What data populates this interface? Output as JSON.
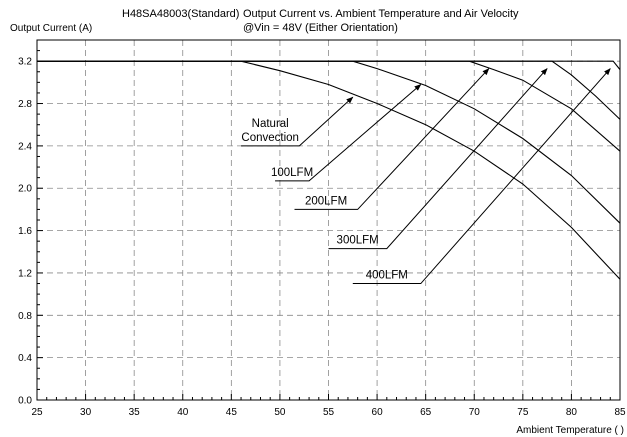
{
  "chart_data": {
    "type": "line",
    "title_line1_left": "H48SA48003(Standard)",
    "title_line1_right": "Output Current vs. Ambient Temperature and Air Velocity",
    "title_line2": "@Vin = 48V (Either Orientation)",
    "ylabel": "Output Current (A)",
    "xlabel": "Ambient Temperature (   )",
    "xlim": [
      25,
      85
    ],
    "ylim": [
      0,
      3.4
    ],
    "x_ticks": [
      25,
      30,
      35,
      40,
      45,
      50,
      55,
      60,
      65,
      70,
      75,
      80,
      85
    ],
    "y_ticks": [
      0.0,
      0.4,
      0.8,
      1.2,
      1.6,
      2.0,
      2.4,
      2.8,
      3.2
    ],
    "y_tick_labels": [
      "0.0",
      "0.4",
      "0.8",
      "1.2",
      "1.6",
      "2.0",
      "2.4",
      "2.8",
      "3.2"
    ],
    "grid": true,
    "series": [
      {
        "name": "Natural Convection",
        "x": [
          25,
          46,
          50,
          55,
          60,
          65,
          70,
          75,
          80,
          85
        ],
        "y": [
          3.2,
          3.2,
          3.11,
          2.98,
          2.8,
          2.6,
          2.35,
          2.04,
          1.63,
          1.14
        ]
      },
      {
        "name": "100LFM",
        "x": [
          25,
          57.5,
          60,
          65,
          70,
          75,
          80,
          85
        ],
        "y": [
          3.2,
          3.2,
          3.13,
          2.97,
          2.75,
          2.47,
          2.12,
          1.67
        ]
      },
      {
        "name": "200LFM",
        "x": [
          25,
          69.5,
          72,
          75,
          80,
          85
        ],
        "y": [
          3.2,
          3.2,
          3.12,
          3.02,
          2.75,
          2.35
        ]
      },
      {
        "name": "300LFM",
        "x": [
          25,
          78,
          80,
          82.5,
          85
        ],
        "y": [
          3.2,
          3.2,
          3.07,
          2.87,
          2.65
        ]
      },
      {
        "name": "400LFM",
        "x": [
          25,
          84.3,
          85
        ],
        "y": [
          3.2,
          3.2,
          3.12
        ]
      }
    ],
    "annotations": [
      {
        "lines": [
          "Natural",
          "Convection"
        ],
        "tail": [
          46,
          2.4
        ],
        "elbow": [
          52,
          2.4
        ],
        "head": [
          57.5,
          2.86
        ]
      },
      {
        "lines": [
          "100LFM"
        ],
        "tail": [
          49.5,
          2.07
        ],
        "elbow": [
          53,
          2.07
        ],
        "head": [
          64.5,
          2.98
        ]
      },
      {
        "lines": [
          "200LFM"
        ],
        "tail": [
          51.5,
          1.8
        ],
        "elbow": [
          58,
          1.8
        ],
        "head": [
          71.5,
          3.13
        ]
      },
      {
        "lines": [
          "300LFM"
        ],
        "tail": [
          55,
          1.43
        ],
        "elbow": [
          61,
          1.43
        ],
        "head": [
          77.5,
          3.13
        ]
      },
      {
        "lines": [
          "400LFM"
        ],
        "tail": [
          57.5,
          1.1
        ],
        "elbow": [
          64.5,
          1.1
        ],
        "head": [
          84,
          3.13
        ]
      }
    ]
  }
}
